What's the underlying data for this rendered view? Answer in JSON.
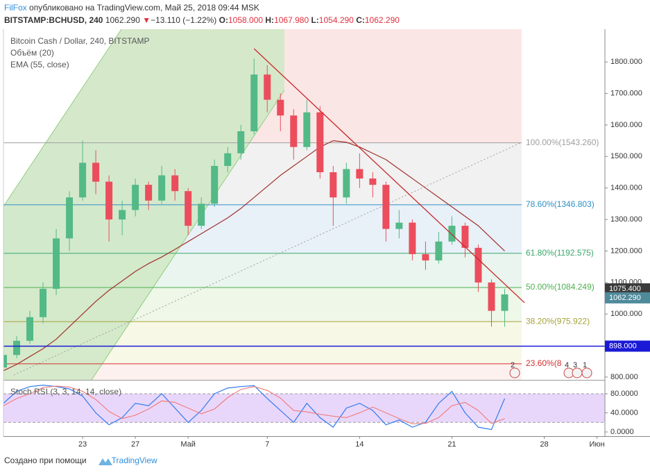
{
  "header": {
    "author": "FilFox",
    "published": "опубликовано на TradingView.com, Май 25, 2018 09:44 MSK",
    "symbol": "BITSTAMP:BCHUSD, 240",
    "last": "1062.290",
    "arrow": "▼",
    "change": "−13.110 (−1.22%)",
    "ohlc": [
      {
        "key": "O:",
        "value": "1058.000"
      },
      {
        "key": "H:",
        "value": "1067.980"
      },
      {
        "key": "L:",
        "value": "1054.290"
      },
      {
        "key": "C:",
        "value": "1062.290"
      }
    ]
  },
  "footer": {
    "text": "Создано при помощи",
    "brand": "TradingView"
  },
  "chart_data": [
    {
      "type": "candlestick",
      "title": "Bitcoin Cash / Dollar, 240, BITSTAMP",
      "volume_label": "Объём (20)",
      "up_color": "#53b987",
      "down_color": "#eb4d5c",
      "x": [
        0,
        1,
        2,
        3,
        4,
        5,
        6,
        7,
        8,
        9,
        10,
        11,
        12,
        13,
        14,
        15,
        16,
        17,
        18,
        19,
        20,
        21,
        22,
        23,
        24,
        25,
        26,
        27,
        28,
        29,
        30,
        31,
        32,
        33,
        34,
        35,
        36,
        37,
        38
      ],
      "open": [
        830,
        870,
        915,
        990,
        1080,
        1240,
        1370,
        1480,
        1420,
        1300,
        1330,
        1410,
        1360,
        1440,
        1390,
        1280,
        1350,
        1470,
        1510,
        1580,
        1760,
        1680,
        1630,
        1530,
        1640,
        1450,
        1370,
        1460,
        1430,
        1410,
        1270,
        1290,
        1190,
        1170,
        1230,
        1280,
        1210,
        1100,
        1010
      ],
      "high": [
        880,
        930,
        1010,
        1100,
        1270,
        1390,
        1550,
        1520,
        1440,
        1360,
        1430,
        1420,
        1470,
        1460,
        1400,
        1370,
        1490,
        1530,
        1600,
        1810,
        1790,
        1700,
        1650,
        1680,
        1660,
        1470,
        1480,
        1510,
        1450,
        1420,
        1330,
        1300,
        1230,
        1260,
        1310,
        1290,
        1220,
        1110,
        1080
      ],
      "low": [
        815,
        860,
        905,
        970,
        1060,
        1200,
        1360,
        1380,
        1230,
        1250,
        1310,
        1330,
        1350,
        1360,
        1250,
        1270,
        1340,
        1450,
        1490,
        1570,
        1640,
        1580,
        1490,
        1520,
        1430,
        1280,
        1350,
        1400,
        1370,
        1230,
        1240,
        1170,
        1140,
        1160,
        1220,
        1180,
        1070,
        960,
        960
      ],
      "close": [
        870,
        915,
        990,
        1080,
        1240,
        1370,
        1480,
        1420,
        1300,
        1330,
        1410,
        1360,
        1440,
        1390,
        1280,
        1350,
        1470,
        1510,
        1580,
        1760,
        1680,
        1630,
        1530,
        1640,
        1450,
        1370,
        1460,
        1430,
        1410,
        1270,
        1290,
        1190,
        1170,
        1230,
        1280,
        1210,
        1100,
        1010,
        1062.29
      ],
      "series": [
        {
          "name": "EMA (55, close)",
          "color": "#a0302a",
          "values": [
            820,
            840,
            865,
            890,
            920,
            960,
            1000,
            1040,
            1075,
            1105,
            1135,
            1160,
            1181,
            1205,
            1230,
            1255,
            1280,
            1305,
            1335,
            1370,
            1405,
            1440,
            1470,
            1500,
            1530,
            1550,
            1545,
            1530,
            1510,
            1490,
            1460,
            1430,
            1400,
            1370,
            1340,
            1310,
            1280,
            1240,
            1200
          ]
        }
      ],
      "trendline": {
        "x": [
          19,
          39.5
        ],
        "values": [
          1842,
          1036
        ],
        "color": "#c62828"
      },
      "fib": {
        "levels": [
          {
            "value": 1543.26,
            "label": "100.00%(1543.260)",
            "color": "#9e9e9e"
          },
          {
            "value": 1346.803,
            "label": "78.60%(1346.803)",
            "color": "#2d8fc4"
          },
          {
            "value": 1192.575,
            "label": "61.80%(1192.575)",
            "color": "#3aa86b"
          },
          {
            "value": 1084.249,
            "label": "50.00%(1084.249)",
            "color": "#4caf50"
          },
          {
            "value": 975.922,
            "label": "38.20%(975.922)",
            "color": "#a5a23a"
          },
          {
            "value": 841.89,
            "label": "23.60%(8",
            "color": "#d32f2f"
          }
        ],
        "band_colors": [
          "#fbe6e6",
          "#f1f1f1",
          "#e8f0f8",
          "#e9f5ee",
          "#eef7e8",
          "#f8f8e6",
          "#fdf1ef"
        ]
      },
      "hline": {
        "value": 898,
        "label": "898.000",
        "color": "#1a1ad6"
      },
      "price_badges": [
        {
          "value": 1075.4,
          "label": "1075.400",
          "color": "#3a3a3a"
        },
        {
          "value": 1062.29,
          "label": "1062.290",
          "color": "#4f8a9a"
        }
      ],
      "events": [
        "2",
        "4",
        "3",
        "1"
      ],
      "xlim": [
        0,
        45.6
      ],
      "ylim": [
        791,
        1904
      ],
      "yticks": [
        {
          "value": 800,
          "label": "800.000"
        },
        {
          "value": 900,
          "label": "900.000"
        },
        {
          "value": 1000,
          "label": "1000.000"
        },
        {
          "value": 1100,
          "label": "1100.000"
        },
        {
          "value": 1200,
          "label": "1200.000"
        },
        {
          "value": 1300,
          "label": "1300.000"
        },
        {
          "value": 1400,
          "label": "1400.000"
        },
        {
          "value": 1500,
          "label": "1500.000"
        },
        {
          "value": 1600,
          "label": "1600.000"
        },
        {
          "value": 1700,
          "label": "1700.000"
        },
        {
          "value": 1800,
          "label": "1800.000"
        }
      ]
    },
    {
      "type": "line",
      "title": "Stoch RSI (3, 3, 14, 14, close)",
      "x": [
        0,
        1,
        2,
        3,
        4,
        5,
        6,
        7,
        8,
        9,
        10,
        11,
        12,
        13,
        14,
        15,
        16,
        17,
        18,
        19,
        20,
        21,
        22,
        23,
        24,
        25,
        26,
        27,
        28,
        29,
        30,
        31,
        32,
        33,
        34,
        35,
        36,
        37,
        38
      ],
      "series": [
        {
          "color": "#2f7bf0",
          "values": [
            60,
            85,
            95,
            98,
            95,
            90,
            75,
            40,
            15,
            30,
            60,
            55,
            80,
            50,
            20,
            45,
            80,
            92,
            95,
            97,
            70,
            45,
            20,
            60,
            30,
            10,
            50,
            60,
            45,
            15,
            25,
            10,
            20,
            60,
            85,
            40,
            10,
            5,
            70
          ]
        },
        {
          "color": "#f07f7f",
          "values": [
            55,
            70,
            80,
            93,
            96,
            94,
            85,
            68,
            43,
            28,
            35,
            48,
            65,
            62,
            50,
            38,
            48,
            72,
            89,
            95,
            87,
            71,
            45,
            42,
            37,
            33,
            30,
            40,
            52,
            40,
            28,
            17,
            18,
            30,
            55,
            62,
            45,
            18,
            28
          ]
        }
      ],
      "bands": [
        20,
        80
      ],
      "band_color": "#e3cdfa",
      "xlim": [
        0,
        45.6
      ],
      "ylim": [
        -8.7,
        107.6
      ],
      "yticks": [
        {
          "value": 0,
          "label": "0.0000"
        },
        {
          "value": 40,
          "label": "40.0000"
        },
        {
          "value": 80,
          "label": "80.0000"
        }
      ],
      "xticks": [
        {
          "value": 6,
          "label": "23"
        },
        {
          "value": 10,
          "label": "27"
        },
        {
          "value": 14,
          "label": "Май"
        },
        {
          "value": 20,
          "label": "7"
        },
        {
          "value": 27,
          "label": "14"
        },
        {
          "value": 34,
          "label": "21"
        },
        {
          "value": 41,
          "label": "28"
        },
        {
          "value": 45,
          "label": "Июн"
        }
      ]
    }
  ]
}
